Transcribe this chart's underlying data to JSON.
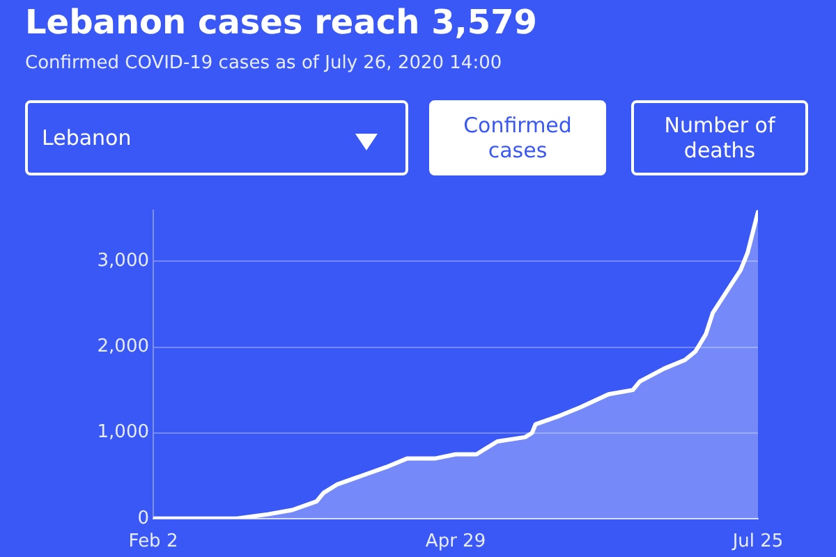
{
  "chart_data": {
    "type": "area",
    "title": "Lebanon cases reach 3,579",
    "subtitle": "Confirmed COVID-19 cases as of July 26, 2020 14:00",
    "annotations": [
      "Lebanon",
      "Confirmed cases",
      "Number of deaths"
    ],
    "x": [
      "--02-02",
      "--02-26",
      "--03-06",
      "--03-13",
      "--03-20",
      "--03-22",
      "--03-26",
      "--04-02",
      "--04-09",
      "--04-15",
      "--04-23",
      "--04-29",
      "--05-05",
      "--05-07",
      "--05-11",
      "--05-19",
      "--05-21",
      "--05-22",
      "--05-29",
      "--06-04",
      "--06-12",
      "--06-19",
      "--06-21",
      "--06-28",
      "--07-04",
      "--07-07",
      "--07-10",
      "--07-12",
      "--07-16",
      "--07-20",
      "--07-22",
      "--07-25"
    ],
    "series": [
      {
        "color": "#ffffff",
        "values": [
          0,
          0,
          50,
          100,
          200,
          300,
          400,
          500,
          600,
          700,
          700,
          750,
          750,
          800,
          900,
          950,
          1000,
          1100,
          1200,
          1300,
          1450,
          1500,
          1600,
          1750,
          1850,
          1950,
          2150,
          2400,
          2650,
          2900,
          3100,
          3579
        ]
      }
    ],
    "xlim": [
      "--02-02",
      "--07-25"
    ],
    "xticks": [
      {
        "value": "--02-02",
        "label": "Feb 2"
      },
      {
        "value": "--04-29",
        "label": "Apr 29"
      },
      {
        "value": "--07-25",
        "label": "Jul 25"
      }
    ],
    "ylim": [
      0,
      3600
    ],
    "yticks": [
      0,
      {
        "value": 1000,
        "label": "1,000"
      },
      {
        "value": 2000,
        "label": "2,000"
      },
      {
        "value": 3000,
        "label": "3,000"
      }
    ],
    "grid": "y",
    "legend": false,
    "marker": "none",
    "line_style": "solid"
  }
}
